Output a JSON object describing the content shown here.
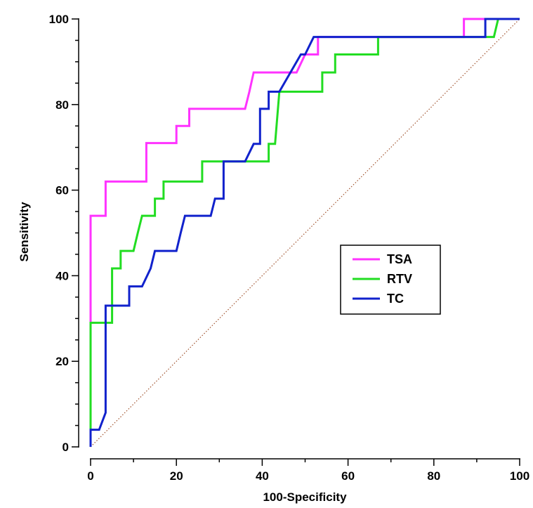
{
  "chart_data": {
    "type": "line",
    "xlabel": "100-Specificity",
    "ylabel": "Sensitivity",
    "xlim": [
      0,
      100
    ],
    "ylim": [
      0,
      100
    ],
    "x_ticks": [
      "0",
      "20",
      "40",
      "60",
      "80",
      "100"
    ],
    "y_ticks": [
      "0",
      "20",
      "40",
      "60",
      "80",
      "100"
    ],
    "grid": false,
    "legend_position": "center-right",
    "reference_line": {
      "style": "dotted",
      "color": "#a0522d",
      "from": [
        0,
        0
      ],
      "to": [
        100,
        100
      ]
    },
    "series": [
      {
        "name": "TSA",
        "color": "#ff33ff",
        "points": [
          [
            0,
            0
          ],
          [
            0,
            54
          ],
          [
            3.5,
            54
          ],
          [
            3.5,
            62
          ],
          [
            13,
            62
          ],
          [
            13,
            71
          ],
          [
            20,
            71
          ],
          [
            20,
            75
          ],
          [
            23,
            75
          ],
          [
            23,
            79
          ],
          [
            36,
            79
          ],
          [
            37,
            83
          ],
          [
            38,
            87.5
          ],
          [
            48,
            87.5
          ],
          [
            50,
            91.7
          ],
          [
            53,
            91.7
          ],
          [
            53,
            95.8
          ],
          [
            87,
            95.8
          ],
          [
            87,
            100
          ],
          [
            100,
            100
          ]
        ]
      },
      {
        "name": "RTV",
        "color": "#22dd22",
        "points": [
          [
            0,
            0
          ],
          [
            0,
            29
          ],
          [
            5,
            29
          ],
          [
            5,
            41.7
          ],
          [
            7,
            41.7
          ],
          [
            7,
            45.8
          ],
          [
            10,
            45.8
          ],
          [
            11,
            50
          ],
          [
            12,
            54
          ],
          [
            15,
            54
          ],
          [
            15,
            58
          ],
          [
            17,
            58
          ],
          [
            17,
            62
          ],
          [
            26,
            62
          ],
          [
            26,
            66.7
          ],
          [
            41.5,
            66.7
          ],
          [
            41.5,
            70.8
          ],
          [
            43,
            70.8
          ],
          [
            44,
            83
          ],
          [
            54,
            83
          ],
          [
            54,
            87.5
          ],
          [
            57,
            87.5
          ],
          [
            57,
            91.7
          ],
          [
            67,
            91.7
          ],
          [
            67,
            95.8
          ],
          [
            94,
            95.8
          ],
          [
            95,
            100
          ],
          [
            100,
            100
          ]
        ]
      },
      {
        "name": "TC",
        "color": "#1122cc",
        "points": [
          [
            0,
            0
          ],
          [
            0,
            4
          ],
          [
            2,
            4
          ],
          [
            3.5,
            8
          ],
          [
            3.5,
            33
          ],
          [
            9,
            33
          ],
          [
            9,
            37.5
          ],
          [
            12,
            37.5
          ],
          [
            14,
            41.7
          ],
          [
            15,
            45.8
          ],
          [
            20,
            45.8
          ],
          [
            21,
            50
          ],
          [
            22,
            54
          ],
          [
            28,
            54
          ],
          [
            29,
            58
          ],
          [
            31,
            58
          ],
          [
            31,
            66.7
          ],
          [
            36,
            66.7
          ],
          [
            38,
            70.8
          ],
          [
            39.5,
            70.8
          ],
          [
            39.5,
            79
          ],
          [
            41.5,
            79
          ],
          [
            41.5,
            83
          ],
          [
            44,
            83
          ],
          [
            49,
            91.7
          ],
          [
            50,
            91.7
          ],
          [
            52,
            95.8
          ],
          [
            92,
            95.8
          ],
          [
            92,
            100
          ],
          [
            100,
            100
          ]
        ]
      }
    ]
  }
}
